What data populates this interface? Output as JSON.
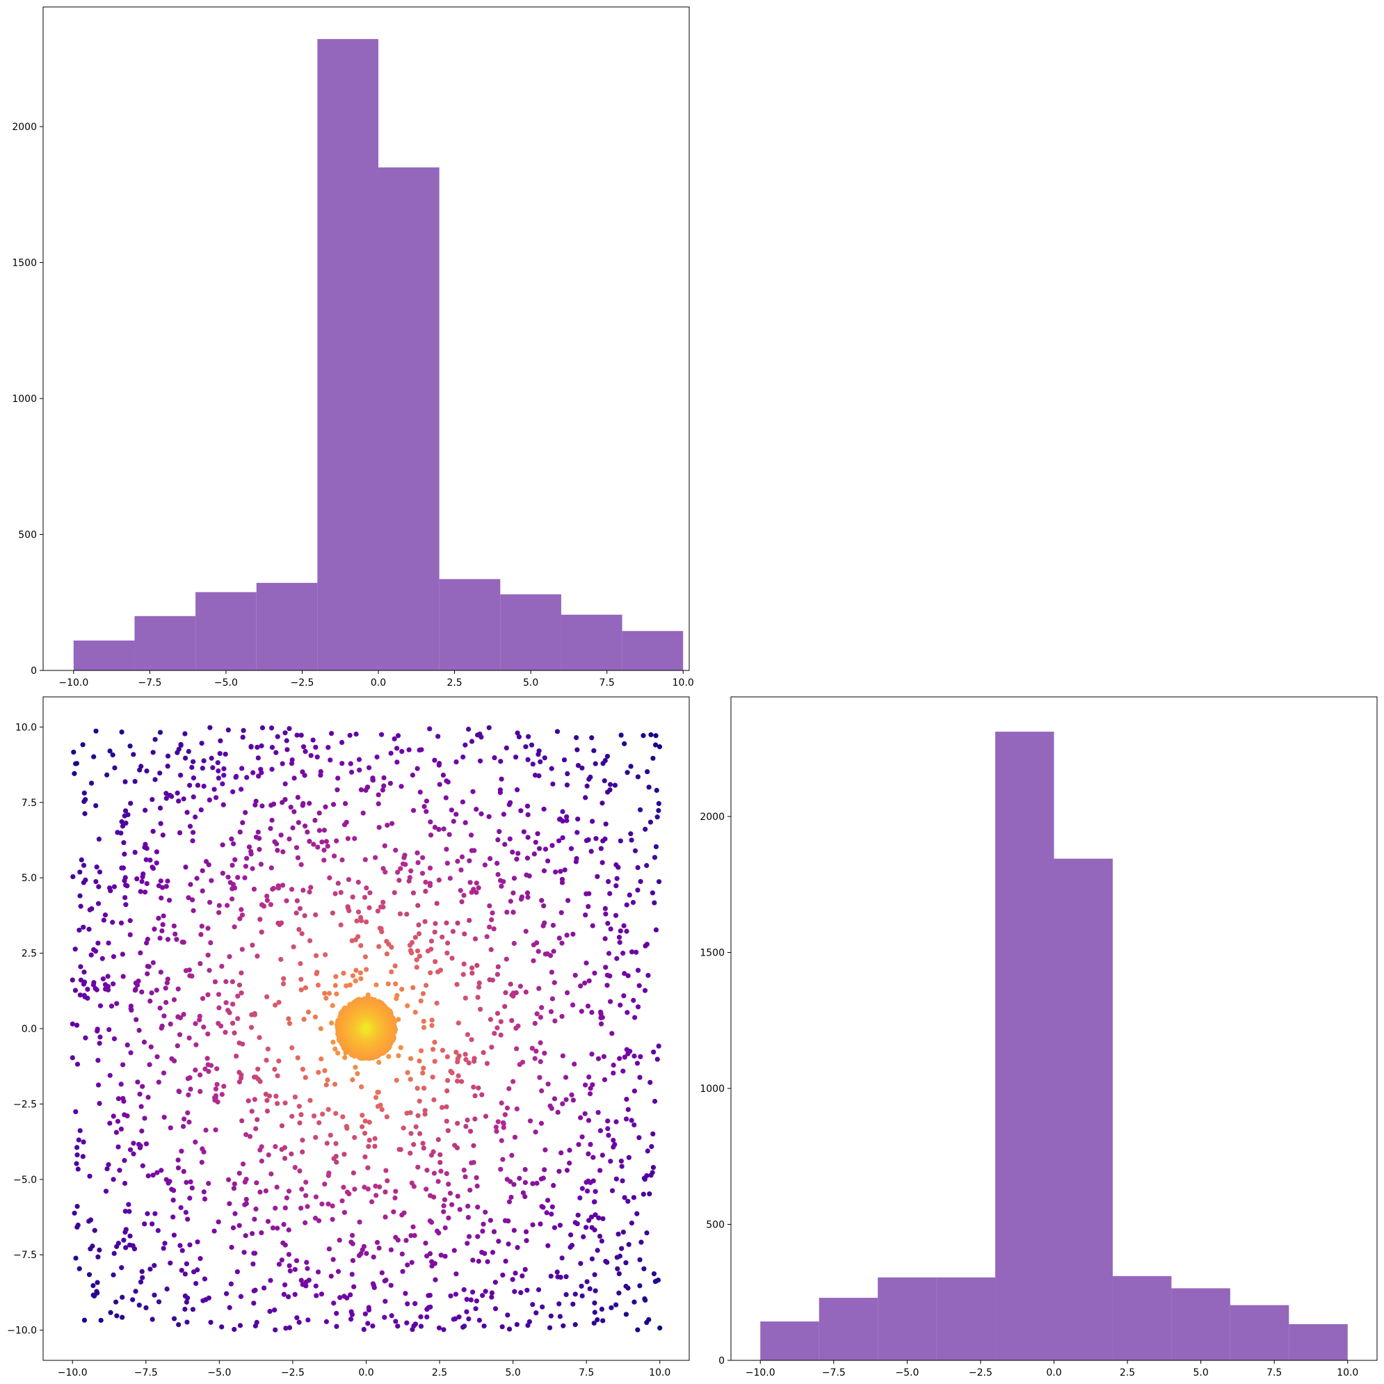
{
  "chart_data": [
    {
      "type": "bar",
      "panel": "top-left",
      "title": "",
      "xlabel": "",
      "ylabel": "",
      "bin_edges": [
        -10,
        -8,
        -6,
        -4,
        -2,
        0,
        2,
        4,
        6,
        8,
        10
      ],
      "bins": [
        {
          "start": -10,
          "end": -8,
          "value": 110
        },
        {
          "start": -8,
          "end": -6,
          "value": 200
        },
        {
          "start": -6,
          "end": -4,
          "value": 288
        },
        {
          "start": -4,
          "end": -2,
          "value": 322
        },
        {
          "start": -2,
          "end": 0,
          "value": 2322
        },
        {
          "start": 0,
          "end": 2,
          "value": 1850
        },
        {
          "start": 2,
          "end": 4,
          "value": 336
        },
        {
          "start": 4,
          "end": 6,
          "value": 280
        },
        {
          "start": 6,
          "end": 8,
          "value": 205
        },
        {
          "start": 8,
          "end": 10,
          "value": 145
        }
      ],
      "xlim": [
        -11,
        10.2
      ],
      "ylim": [
        0,
        2440
      ],
      "xticks": [
        -10.0,
        -7.5,
        -5.0,
        -2.5,
        0.0,
        2.5,
        5.0,
        7.5,
        10.0
      ],
      "xtick_labels": [
        "−10.0",
        "−7.5",
        "−5.0",
        "−2.5",
        "0.0",
        "2.5",
        "5.0",
        "7.5",
        "10.0"
      ],
      "yticks": [
        0,
        500,
        1000,
        1500,
        2000
      ],
      "ytick_labels": [
        "0",
        "500",
        "1000",
        "1500",
        "2000"
      ],
      "color": "#9467bd",
      "grid": false
    },
    {
      "type": "scatter",
      "panel": "bottom-left",
      "title": "",
      "xlabel": "",
      "ylabel": "",
      "description_points": {
        "uniform_background": {
          "count": 2000,
          "x_range": [
            -10,
            10
          ],
          "y_range": [
            -10,
            10
          ]
        },
        "central_cluster": {
          "count": 2000,
          "center": [
            0,
            0
          ],
          "radius": 1
        }
      },
      "colormap": [
        "#0d0887",
        "#6a00a8",
        "#b12a90",
        "#e16462",
        "#fca636",
        "#f0f921"
      ],
      "color_by": "distance from origin (closer = brighter)",
      "xlim": [
        -11,
        11
      ],
      "ylim": [
        -11,
        11
      ],
      "xticks": [
        -10.0,
        -7.5,
        -5.0,
        -2.5,
        0.0,
        2.5,
        5.0,
        7.5,
        10.0
      ],
      "xtick_labels": [
        "−10.0",
        "−7.5",
        "−5.0",
        "−2.5",
        "0.0",
        "2.5",
        "5.0",
        "7.5",
        "10.0"
      ],
      "yticks": [
        -10.0,
        -7.5,
        -5.0,
        -2.5,
        0.0,
        2.5,
        5.0,
        7.5,
        10.0
      ],
      "ytick_labels": [
        "−10.0",
        "−7.5",
        "−5.0",
        "−2.5",
        "0.0",
        "2.5",
        "5.0",
        "7.5",
        "10.0"
      ],
      "grid": false
    },
    {
      "type": "bar",
      "panel": "bottom-right",
      "title": "",
      "xlabel": "",
      "ylabel": "",
      "bin_edges": [
        -10,
        -8,
        -6,
        -4,
        -2,
        0,
        2,
        4,
        6,
        8,
        10
      ],
      "bins": [
        {
          "start": -10,
          "end": -8,
          "value": 143
        },
        {
          "start": -8,
          "end": -6,
          "value": 230
        },
        {
          "start": -6,
          "end": -4,
          "value": 305
        },
        {
          "start": -4,
          "end": -2,
          "value": 305
        },
        {
          "start": -2,
          "end": 0,
          "value": 2312
        },
        {
          "start": 0,
          "end": 2,
          "value": 1845
        },
        {
          "start": 2,
          "end": 4,
          "value": 310
        },
        {
          "start": 4,
          "end": 6,
          "value": 265
        },
        {
          "start": 6,
          "end": 8,
          "value": 203
        },
        {
          "start": 8,
          "end": 10,
          "value": 133
        }
      ],
      "xlim": [
        -11,
        11
      ],
      "ylim": [
        0,
        2440
      ],
      "xticks": [
        -10.0,
        -7.5,
        -5.0,
        -2.5,
        0.0,
        2.5,
        5.0,
        7.5,
        10.0
      ],
      "xtick_labels": [
        "−10.0",
        "−7.5",
        "−5.0",
        "−2.5",
        "0.0",
        "2.5",
        "5.0",
        "7.5",
        "10.0"
      ],
      "yticks": [
        0,
        500,
        1000,
        1500,
        2000
      ],
      "ytick_labels": [
        "0",
        "500",
        "1000",
        "1500",
        "2000"
      ],
      "color": "#9467bd",
      "grid": false
    }
  ]
}
